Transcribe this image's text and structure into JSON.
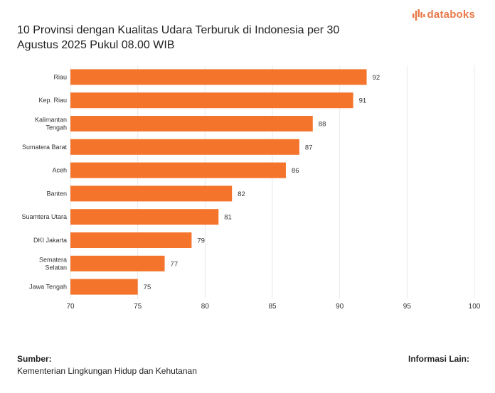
{
  "title": "10 Provinsi dengan Kualitas Udara Terburuk di Indonesia per 30 Agustus 2025 Pukul 08.00 WIB",
  "brand": "databoks",
  "colors": {
    "bar": "#f4742b",
    "brand": "#e8794a",
    "grid": "#e9e9e9"
  },
  "footer": {
    "source_label": "Sumber:",
    "source_text": "Kementerian Lingkungan Hidup dan Kehutanan",
    "info_label": "Informasi Lain:"
  },
  "chart_data": {
    "type": "bar",
    "orientation": "horizontal",
    "categories": [
      "Riau",
      "Kep. Riau",
      "Kalimantan Tengah",
      "Sumatera Barat",
      "Aceh",
      "Banten",
      "Suamtera Utara",
      "DKI Jakarta",
      "Sematera Selatan",
      "Jawa Tengah"
    ],
    "values": [
      92,
      91,
      88,
      87,
      86,
      82,
      81,
      79,
      77,
      75
    ],
    "xlim": [
      70,
      100
    ],
    "xticks": [
      70,
      75,
      80,
      85,
      90,
      95,
      100
    ],
    "grid": true,
    "data_labels": true
  }
}
